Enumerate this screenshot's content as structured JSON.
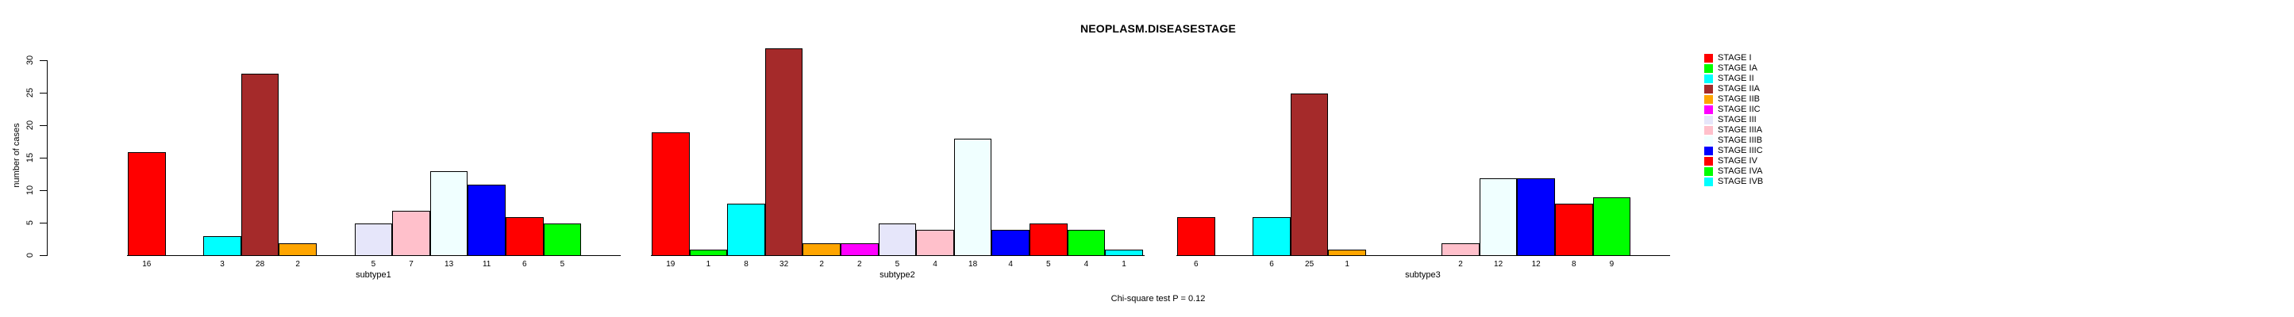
{
  "chart_data": {
    "type": "bar",
    "title": "NEOPLASM.DISEASESTAGE",
    "ylabel": "number of cases",
    "xlabel": "",
    "ylim": [
      0,
      30
    ],
    "yticks": [
      0,
      5,
      10,
      15,
      20,
      25,
      30
    ],
    "grid": false,
    "legend_position": "right",
    "annotation": "Chi-square test P = 0.12",
    "categories": [
      "subtype1",
      "subtype2",
      "subtype3"
    ],
    "series": [
      {
        "name": "STAGE I",
        "color": "#FF0000",
        "values": [
          16,
          19,
          6
        ]
      },
      {
        "name": "STAGE IA",
        "color": "#00FF00",
        "values": [
          0,
          1,
          0
        ]
      },
      {
        "name": "STAGE II",
        "color": "#00FFFF",
        "values": [
          3,
          8,
          6
        ]
      },
      {
        "name": "STAGE IIA",
        "color": "#A52A2A",
        "values": [
          28,
          32,
          25
        ]
      },
      {
        "name": "STAGE IIB",
        "color": "#FFA500",
        "values": [
          2,
          2,
          1
        ]
      },
      {
        "name": "STAGE IIC",
        "color": "#FF00FF",
        "values": [
          0,
          2,
          0
        ]
      },
      {
        "name": "STAGE III",
        "color": "#E6E6FA",
        "values": [
          5,
          5,
          0
        ]
      },
      {
        "name": "STAGE IIIA",
        "color": "#FFC0CB",
        "values": [
          7,
          4,
          2
        ]
      },
      {
        "name": "STAGE IIIB",
        "color": "#F0FFFF",
        "values": [
          13,
          18,
          12
        ]
      },
      {
        "name": "STAGE IIIC",
        "color": "#0000FF",
        "values": [
          11,
          4,
          12
        ]
      },
      {
        "name": "STAGE IV",
        "color": "#FF0000",
        "values": [
          6,
          5,
          8
        ]
      },
      {
        "name": "STAGE IVA",
        "color": "#00FF00",
        "values": [
          5,
          4,
          9
        ]
      },
      {
        "name": "STAGE IVB",
        "color": "#00FFFF",
        "values": [
          0,
          1,
          0
        ]
      }
    ],
    "value_labels_shown": true
  }
}
